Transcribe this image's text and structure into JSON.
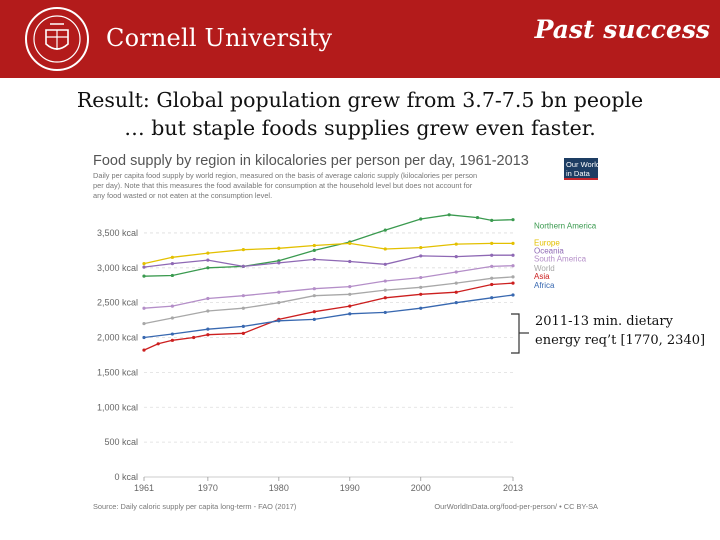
{
  "header": {
    "brand": "Cornell University",
    "slide_title": "Past success",
    "seal_name": "Cornell University seal",
    "bg_color": "#b31b1b"
  },
  "headline": {
    "line1": "Result: Global population grew from 3.7-7.5 bn people",
    "line2": "… but staple foods supplies grew even faster."
  },
  "annotation": {
    "line1": "2011-13 min. dietary",
    "line2": "energy req’t [1770, 2340]"
  },
  "chart_data": {
    "type": "line",
    "title": "Food supply by region in kilocalories per person per day, 1961-2013",
    "subtitle_lines": [
      "Daily per capita food supply by world region, measured on the basis of average caloric supply (kilocalories per person",
      "per day). Note that this measures the food available for consumption at the household level but does not account for",
      "any food wasted or not eaten at the consumption level."
    ],
    "logo": [
      "Our World",
      "in Data"
    ],
    "source": "Source: Daily caloric supply per capita long-term - FAO (2017)",
    "license": "OurWorldInData.org/food-per-person/ • CC BY-SA",
    "ylim": [
      0,
      3800
    ],
    "yticks": [
      {
        "value": 0,
        "label": "0 kcal"
      },
      {
        "value": 500,
        "label": "500 kcal"
      },
      {
        "value": 1000,
        "label": "1,000 kcal"
      },
      {
        "value": 1500,
        "label": "1,500 kcal"
      },
      {
        "value": 2000,
        "label": "2,000 kcal"
      },
      {
        "value": 2500,
        "label": "2,500 kcal"
      },
      {
        "value": 3000,
        "label": "3,000 kcal"
      },
      {
        "value": 3500,
        "label": "3,500 kcal"
      }
    ],
    "xlim": [
      1961,
      2013
    ],
    "xticks": [
      {
        "value": 1961,
        "label": "1961"
      },
      {
        "value": 1970,
        "label": "1970"
      },
      {
        "value": 1980,
        "label": "1980"
      },
      {
        "value": 1990,
        "label": "1990"
      },
      {
        "value": 2000,
        "label": "2000"
      },
      {
        "value": 2013,
        "label": "2013"
      }
    ],
    "series": [
      {
        "name": "Northern America",
        "color": "#3a9a4f",
        "x": [
          1961,
          1965,
          1970,
          1975,
          1980,
          1985,
          1990,
          1995,
          2000,
          2004,
          2008,
          2010,
          2013
        ],
        "values": [
          2880,
          2890,
          3000,
          3020,
          3100,
          3250,
          3370,
          3540,
          3700,
          3760,
          3720,
          3680,
          3690
        ]
      },
      {
        "name": "Europe",
        "color": "#e3c000",
        "x": [
          1961,
          1965,
          1970,
          1975,
          1980,
          1985,
          1990,
          1995,
          2000,
          2005,
          2010,
          2013
        ],
        "values": [
          3060,
          3150,
          3210,
          3260,
          3280,
          3320,
          3350,
          3270,
          3290,
          3340,
          3350,
          3350
        ]
      },
      {
        "name": "Oceania",
        "color": "#8e68b4",
        "x": [
          1961,
          1965,
          1970,
          1975,
          1980,
          1985,
          1990,
          1995,
          2000,
          2005,
          2010,
          2013
        ],
        "values": [
          3010,
          3060,
          3110,
          3020,
          3070,
          3120,
          3090,
          3050,
          3170,
          3160,
          3180,
          3180
        ]
      },
      {
        "name": "South America",
        "color": "#b48ec8",
        "x": [
          1961,
          1965,
          1970,
          1975,
          1980,
          1985,
          1990,
          1995,
          2000,
          2005,
          2010,
          2013
        ],
        "values": [
          2420,
          2450,
          2560,
          2600,
          2650,
          2700,
          2730,
          2810,
          2860,
          2940,
          3020,
          3030
        ]
      },
      {
        "name": "World",
        "color": "#a8a8a8",
        "x": [
          1961,
          1965,
          1970,
          1975,
          1980,
          1985,
          1990,
          1995,
          2000,
          2005,
          2010,
          2013
        ],
        "values": [
          2200,
          2280,
          2380,
          2420,
          2500,
          2600,
          2620,
          2680,
          2720,
          2780,
          2850,
          2870
        ]
      },
      {
        "name": "Asia",
        "color": "#cc1f1f",
        "x": [
          1961,
          1963,
          1965,
          1968,
          1970,
          1975,
          1980,
          1985,
          1990,
          1995,
          2000,
          2005,
          2010,
          2013
        ],
        "values": [
          1820,
          1910,
          1960,
          2000,
          2040,
          2060,
          2260,
          2370,
          2450,
          2570,
          2620,
          2650,
          2760,
          2780
        ]
      },
      {
        "name": "Africa",
        "color": "#3868b0",
        "x": [
          1961,
          1965,
          1970,
          1975,
          1980,
          1985,
          1990,
          1995,
          2000,
          2005,
          2010,
          2013
        ],
        "values": [
          2000,
          2050,
          2120,
          2160,
          2240,
          2260,
          2340,
          2360,
          2420,
          2500,
          2570,
          2610
        ]
      }
    ],
    "label_values": [
      3610,
      3360,
      3250,
      3130,
      3000,
      2880,
      2750
    ]
  }
}
